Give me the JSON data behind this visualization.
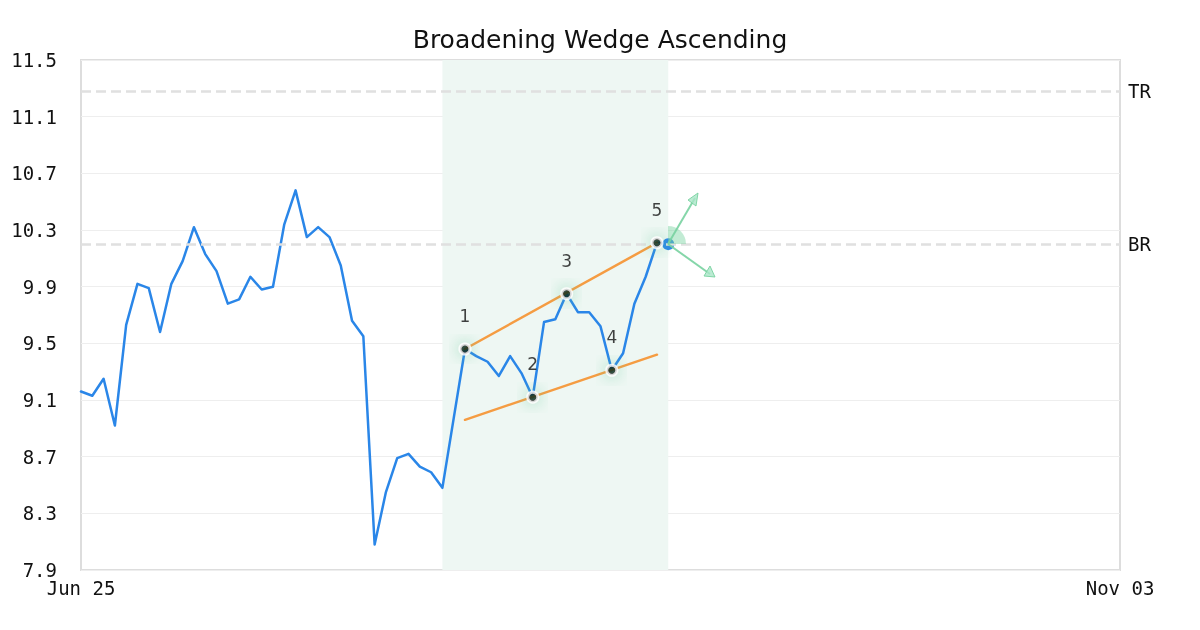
{
  "chart_data": {
    "type": "line",
    "title": "Broadening Wedge Ascending",
    "categories": [
      "Jun 25",
      null,
      null,
      null,
      null,
      null,
      null,
      null,
      null,
      null,
      null,
      null,
      null,
      null,
      null,
      null,
      null,
      null,
      null,
      null,
      null,
      null,
      null,
      null,
      null,
      null,
      null,
      null,
      null,
      null,
      null,
      null,
      null,
      null,
      null,
      null,
      null,
      null,
      null,
      null,
      null,
      null,
      null,
      null,
      null,
      null,
      null,
      null,
      null,
      null,
      null,
      null,
      null,
      null,
      null,
      null,
      null,
      null,
      null,
      null,
      null,
      null,
      null,
      null,
      null,
      null,
      null,
      null,
      null,
      null,
      null,
      null,
      null,
      null,
      null,
      null,
      null,
      null,
      null,
      null,
      null,
      null,
      null,
      null,
      null,
      null,
      null,
      null,
      null,
      null,
      null,
      null,
      "Nov 03"
    ],
    "series": [
      {
        "color": "#2a86e8",
        "values": [
          9.16,
          9.13,
          9.25,
          8.92,
          9.63,
          9.92,
          9.89,
          9.58,
          9.92,
          10.08,
          10.32,
          10.13,
          10.01,
          9.78,
          9.81,
          9.97,
          9.88,
          9.9,
          10.34,
          10.58,
          10.25,
          10.32,
          10.25,
          10.05,
          9.66,
          9.55,
          8.08,
          8.45,
          8.69,
          8.72,
          8.63,
          8.59,
          8.48,
          8.97,
          9.46,
          9.41,
          9.37,
          9.27,
          9.41,
          9.29,
          9.12,
          9.65,
          9.67,
          9.85,
          9.72,
          9.72,
          9.62,
          9.31,
          9.43,
          9.78,
          9.97,
          10.21,
          10.2,
          null,
          null,
          null,
          null,
          null,
          null,
          null,
          null,
          null,
          null,
          null,
          null,
          null,
          null,
          null,
          null,
          null,
          null,
          null,
          null,
          null,
          null,
          null,
          null,
          null,
          null,
          null,
          null,
          null,
          null,
          null,
          null,
          null,
          null,
          null,
          null,
          null,
          null,
          null,
          null
        ]
      },
      {
        "type": "line",
        "color": "#f59c42",
        "values": [
          null,
          null,
          null,
          null,
          null,
          null,
          null,
          null,
          null,
          null,
          null,
          null,
          null,
          null,
          null,
          null,
          null,
          null,
          null,
          null,
          null,
          null,
          null,
          null,
          null,
          null,
          null,
          null,
          null,
          null,
          null,
          null,
          null,
          null,
          9.46,
          null,
          null,
          null,
          null,
          null,
          null,
          null,
          null,
          null,
          null,
          null,
          null,
          null,
          null,
          null,
          null,
          10.21,
          null,
          null,
          null,
          null,
          null,
          null,
          null,
          null,
          null,
          null,
          null,
          null,
          null,
          null,
          null,
          null,
          null,
          null,
          null,
          null,
          null,
          null,
          null,
          null,
          null,
          null,
          null,
          null,
          null,
          null,
          null,
          null,
          null,
          null,
          null,
          null,
          null,
          null,
          null,
          null,
          null
        ]
      },
      {
        "type": "line",
        "color": "#f59c42",
        "values": [
          null,
          null,
          null,
          null,
          null,
          null,
          null,
          null,
          null,
          null,
          null,
          null,
          null,
          null,
          null,
          null,
          null,
          null,
          null,
          null,
          null,
          null,
          null,
          null,
          null,
          null,
          null,
          null,
          null,
          null,
          null,
          null,
          null,
          null,
          8.96,
          null,
          null,
          null,
          null,
          null,
          null,
          null,
          null,
          null,
          null,
          null,
          null,
          null,
          null,
          null,
          null,
          9.42,
          null,
          null,
          null,
          null,
          null,
          null,
          null,
          null,
          null,
          null,
          null,
          null,
          null,
          null,
          null,
          null,
          null,
          null,
          null,
          null,
          null,
          null,
          null,
          null,
          null,
          null,
          null,
          null,
          null,
          null,
          null,
          null,
          null,
          null,
          null,
          null,
          null,
          null,
          null,
          null,
          null
        ]
      },
      {
        "type": "scatter",
        "color": "#000000",
        "marker": "circle",
        "values": [
          null,
          null,
          null,
          null,
          null,
          null,
          null,
          null,
          null,
          null,
          null,
          null,
          null,
          null,
          null,
          null,
          null,
          null,
          null,
          null,
          null,
          null,
          null,
          null,
          null,
          null,
          null,
          null,
          null,
          null,
          null,
          null,
          null,
          null,
          9.46,
          null,
          null,
          null,
          null,
          null,
          9.12,
          null,
          null,
          9.85,
          null,
          null,
          null,
          9.31,
          null,
          null,
          null,
          10.21,
          null,
          null,
          null,
          null,
          null,
          null,
          null,
          null,
          null,
          null,
          null,
          null,
          null,
          null,
          null,
          null,
          null,
          null,
          null,
          null,
          null,
          null,
          null,
          null,
          null,
          null,
          null,
          null,
          null,
          null,
          null,
          null,
          null,
          null,
          null,
          null,
          null,
          null,
          null,
          null,
          null
        ]
      }
    ],
    "annotations": [
      "1",
      "2",
      "3",
      "4",
      "5"
    ],
    "ylim": [
      7.9,
      11.5
    ],
    "yticks": [
      7.9,
      8.3,
      8.7,
      9.1,
      9.5,
      9.9,
      10.3,
      10.7,
      11.1,
      11.5
    ],
    "ref_lines": [
      {
        "axis": "y",
        "value": 11.28,
        "label": "TR",
        "color": "#e0e0e0",
        "line_style": "dashed"
      },
      {
        "axis": "y",
        "value": 10.2,
        "label": "BR",
        "color": "#e0e0e0",
        "line_style": "dashed"
      }
    ],
    "grid": "y",
    "marker": "none",
    "line_style": "solid"
  }
}
